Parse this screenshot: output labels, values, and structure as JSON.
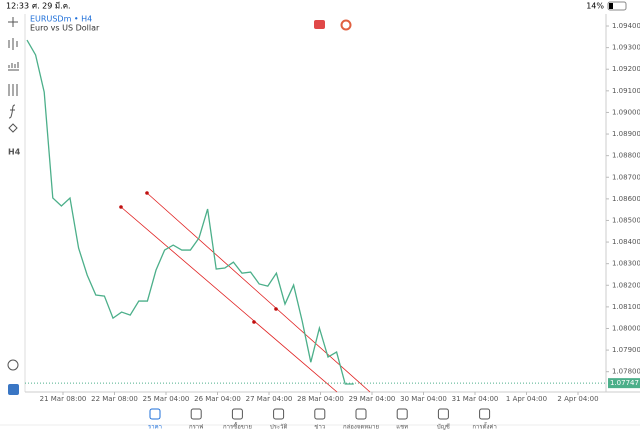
{
  "status_bar": {
    "time": "12:33",
    "date": "ศ. 29 มี.ค.",
    "battery": "14%"
  },
  "chart_data": {
    "type": "line",
    "symbol_line": "EURUSDm • H4",
    "subtitle": "Euro vs US Dollar",
    "color": "#4caf8a",
    "values": [
      1.09335,
      1.09266,
      1.09094,
      1.08604,
      1.08567,
      1.08604,
      1.08372,
      1.08247,
      1.08155,
      1.0815,
      1.08048,
      1.08076,
      1.08062,
      1.08127,
      1.08127,
      1.0827,
      1.08363,
      1.08386,
      1.08363,
      1.08363,
      1.08419,
      1.08553,
      1.08275,
      1.0828,
      1.08307,
      1.08256,
      1.08261,
      1.08206,
      1.08196,
      1.08256,
      1.08113,
      1.08201,
      1.08034,
      1.07844,
      1.08002,
      1.07868,
      1.07891,
      1.07743,
      1.07743
    ],
    "ylim": [
      1.07706,
      1.09451
    ],
    "yticks": [
      {
        "value": 1.094,
        "label": "1.09400"
      },
      {
        "value": 1.093,
        "label": "1.09300"
      },
      {
        "value": 1.092,
        "label": "1.09200"
      },
      {
        "value": 1.091,
        "label": "1.09100"
      },
      {
        "value": 1.09,
        "label": "1.09000"
      },
      {
        "value": 1.089,
        "label": "1.08900"
      },
      {
        "value": 1.088,
        "label": "1.08800"
      },
      {
        "value": 1.087,
        "label": "1.08700"
      },
      {
        "value": 1.086,
        "label": "1.08600"
      },
      {
        "value": 1.085,
        "label": "1.08500"
      },
      {
        "value": 1.084,
        "label": "1.08400"
      },
      {
        "value": 1.083,
        "label": "1.08300"
      },
      {
        "value": 1.082,
        "label": "1.08200"
      },
      {
        "value": 1.081,
        "label": "1.08100"
      },
      {
        "value": 1.08,
        "label": "1.08000"
      },
      {
        "value": 1.079,
        "label": "1.07900"
      },
      {
        "value": 1.078,
        "label": "1.07800"
      }
    ],
    "x_labels": [
      "21 Mar 08:00",
      "22 Mar 08:00",
      "25 Mar 04:00",
      "26 Mar 04:00",
      "27 Mar 04:00",
      "28 Mar 04:00",
      "29 Mar 04:00",
      "30 Mar 04:00",
      "31 Mar 04:00",
      "1 Apr 04:00",
      "2 Apr 04:00"
    ],
    "last_price": {
      "value": 1.07747,
      "label": "1.07747"
    }
  },
  "toolbar": {
    "timeframe": "H4"
  },
  "nav": [
    "ราคา",
    "กราฟ",
    "การซื้อขาย",
    "ประวัติ",
    "ข่าว",
    "กล่องจดหมาย",
    "แชท",
    "บัญชี",
    "การตั้งค่า"
  ]
}
